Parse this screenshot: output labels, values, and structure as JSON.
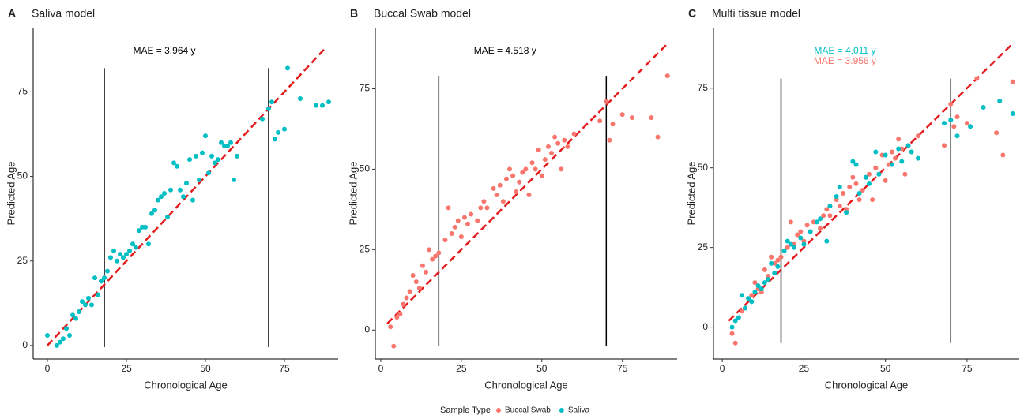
{
  "chart_data": [
    {
      "type": "scatter",
      "panel": "A",
      "title": "Saliva model",
      "xlabel": "Chronological Age",
      "ylabel": "Predicted Age",
      "annotations": [
        {
          "text": "MAE = 3.964 y",
          "color": "#000000"
        }
      ],
      "xlim": [
        -4.5,
        92
      ],
      "ylim": [
        -4,
        94
      ],
      "xticks": [
        0,
        25,
        50,
        75
      ],
      "yticks": [
        0,
        25,
        50,
        75
      ],
      "vlines": [
        {
          "x": 18,
          "ymin": -0.5,
          "ymax": 82
        },
        {
          "x": 70,
          "ymin": -0.5,
          "ymax": 82
        }
      ],
      "reference_line": {
        "from": 0,
        "to": 88,
        "color": "#e41a1c"
      },
      "series": [
        {
          "name": "Saliva",
          "color": "#00BFC4",
          "x": [
            0,
            3,
            4,
            5,
            6,
            7,
            8,
            9,
            10,
            11,
            12,
            13,
            14,
            15,
            16,
            17,
            18,
            19,
            20,
            21,
            22,
            23,
            24,
            25,
            26,
            27,
            28,
            29,
            30,
            31,
            32,
            33,
            34,
            35,
            36,
            37,
            38,
            39,
            40,
            41,
            42,
            43,
            44,
            45,
            46,
            47,
            48,
            49,
            50,
            51,
            52,
            53,
            54,
            55,
            56,
            57,
            58,
            59,
            60,
            68,
            70,
            71,
            72,
            73,
            75,
            76,
            80,
            85,
            87,
            89
          ],
          "values": [
            3,
            0,
            1,
            2,
            5,
            3,
            9,
            8,
            10,
            13,
            12,
            14,
            12,
            20,
            15,
            19,
            20,
            22,
            26,
            28,
            25,
            27,
            26,
            27,
            28,
            30,
            29,
            34,
            35,
            35,
            30,
            39,
            40,
            43,
            44,
            45,
            38,
            46,
            54,
            53,
            46,
            44,
            48,
            55,
            43,
            56,
            49,
            57,
            62,
            51,
            56,
            54,
            55,
            60,
            59,
            59,
            60,
            49,
            56,
            67,
            70,
            72,
            61,
            63,
            64,
            82,
            73,
            71,
            71,
            72
          ]
        }
      ]
    },
    {
      "type": "scatter",
      "panel": "B",
      "title": "Buccal Swab model",
      "xlabel": "Chronological Age",
      "ylabel": "Predicted Age",
      "annotations": [
        {
          "text": "MAE = 4.518 y",
          "color": "#000000"
        }
      ],
      "xlim": [
        -1.7,
        92
      ],
      "ylim": [
        -9,
        94
      ],
      "xticks": [
        0,
        25,
        50,
        75
      ],
      "yticks": [
        0,
        25,
        50,
        75
      ],
      "vlines": [
        {
          "x": 18,
          "ymin": -5,
          "ymax": 79
        },
        {
          "x": 70,
          "ymin": -5,
          "ymax": 79
        }
      ],
      "reference_line": {
        "from": 2,
        "to": 89,
        "color": "#e41a1c"
      },
      "series": [
        {
          "name": "Buccal Swab",
          "color": "#F8766D",
          "x": [
            3,
            4,
            5,
            6,
            7,
            8,
            9,
            10,
            11,
            12,
            13,
            14,
            15,
            16,
            17,
            18,
            20,
            21,
            22,
            23,
            24,
            25,
            26,
            27,
            28,
            30,
            31,
            32,
            33,
            35,
            36,
            37,
            38,
            39,
            40,
            41,
            42,
            43,
            44,
            45,
            46,
            47,
            48,
            49,
            50,
            51,
            52,
            53,
            54,
            55,
            56,
            57,
            58,
            60,
            68,
            70,
            71,
            72,
            75,
            78,
            84,
            86,
            89
          ],
          "values": [
            1,
            -5,
            4,
            5,
            8,
            10,
            12,
            17,
            15,
            13,
            20,
            18,
            25,
            22,
            23,
            24,
            28,
            38,
            30,
            32,
            34,
            29,
            35,
            33,
            36,
            34,
            38,
            40,
            38,
            44,
            42,
            45,
            40,
            47,
            50,
            48,
            43,
            46,
            49,
            50,
            42,
            52,
            50,
            56,
            48,
            53,
            57,
            55,
            60,
            58,
            50,
            59,
            57,
            61,
            65,
            71,
            59,
            64,
            67,
            66,
            66,
            60,
            79
          ]
        }
      ]
    },
    {
      "type": "scatter",
      "panel": "C",
      "title": "Multi tissue model",
      "xlabel": "Chronological Age",
      "ylabel": "Predicted Age",
      "annotations": [
        {
          "text": "MAE = 4.011 y",
          "color": "#00BFC4"
        },
        {
          "text": "MAE = 3.956 y",
          "color": "#F8766D"
        }
      ],
      "xlim": [
        -2.7,
        91
      ],
      "ylim": [
        -10,
        94
      ],
      "xticks": [
        0,
        25,
        50,
        75
      ],
      "yticks": [
        0,
        25,
        50,
        75
      ],
      "vlines": [
        {
          "x": 18,
          "ymin": -5,
          "ymax": 78
        },
        {
          "x": 70,
          "ymin": -5,
          "ymax": 78
        }
      ],
      "reference_line": {
        "from": 2,
        "to": 89,
        "color": "#e41a1c"
      },
      "series": [
        {
          "name": "Buccal Swab",
          "color": "#F8766D",
          "x": [
            3,
            4,
            5,
            6,
            7,
            8,
            9,
            10,
            11,
            12,
            13,
            14,
            15,
            16,
            17,
            18,
            20,
            21,
            22,
            23,
            24,
            25,
            26,
            27,
            28,
            30,
            31,
            32,
            33,
            35,
            36,
            37,
            38,
            39,
            40,
            41,
            42,
            43,
            44,
            45,
            46,
            47,
            48,
            49,
            50,
            51,
            52,
            53,
            54,
            55,
            56,
            57,
            58,
            60,
            68,
            70,
            71,
            72,
            75,
            78,
            84,
            86,
            89
          ],
          "values": [
            -2,
            -5,
            3,
            5,
            6,
            9,
            10,
            14,
            12,
            11,
            18,
            16,
            22,
            20,
            21,
            22,
            25,
            33,
            26,
            29,
            30,
            27,
            32,
            30,
            33,
            31,
            35,
            37,
            35,
            40,
            38,
            42,
            37,
            44,
            47,
            45,
            40,
            43,
            47,
            48,
            40,
            50,
            48,
            54,
            46,
            51,
            55,
            53,
            59,
            56,
            48,
            57,
            55,
            60,
            57,
            70,
            63,
            66,
            64,
            78,
            61,
            54,
            77
          ]
        },
        {
          "name": "Saliva",
          "color": "#00BFC4",
          "x": [
            3,
            4,
            5,
            6,
            7,
            8,
            9,
            10,
            11,
            12,
            13,
            14,
            15,
            16,
            17,
            19,
            20,
            21,
            22,
            24,
            25,
            27,
            29,
            30,
            32,
            33,
            35,
            36,
            38,
            40,
            41,
            42,
            44,
            45,
            47,
            48,
            50,
            52,
            54,
            55,
            57,
            58,
            60,
            68,
            70,
            72,
            76,
            80,
            85,
            89
          ],
          "values": [
            0,
            2,
            3,
            10,
            6,
            9,
            8,
            11,
            13,
            12,
            14,
            15,
            20,
            17,
            19,
            24,
            27,
            26,
            25,
            28,
            26,
            30,
            33,
            34,
            27,
            38,
            41,
            44,
            36,
            52,
            51,
            42,
            47,
            45,
            55,
            48,
            54,
            51,
            56,
            52,
            57,
            55,
            53,
            64,
            65,
            60,
            63,
            69,
            71,
            67
          ]
        }
      ]
    }
  ],
  "legend": {
    "title": "Sample Type",
    "items": [
      {
        "name": "Buccal Swab",
        "color": "#F8766D"
      },
      {
        "name": "Saliva",
        "color": "#00BFC4"
      }
    ]
  }
}
